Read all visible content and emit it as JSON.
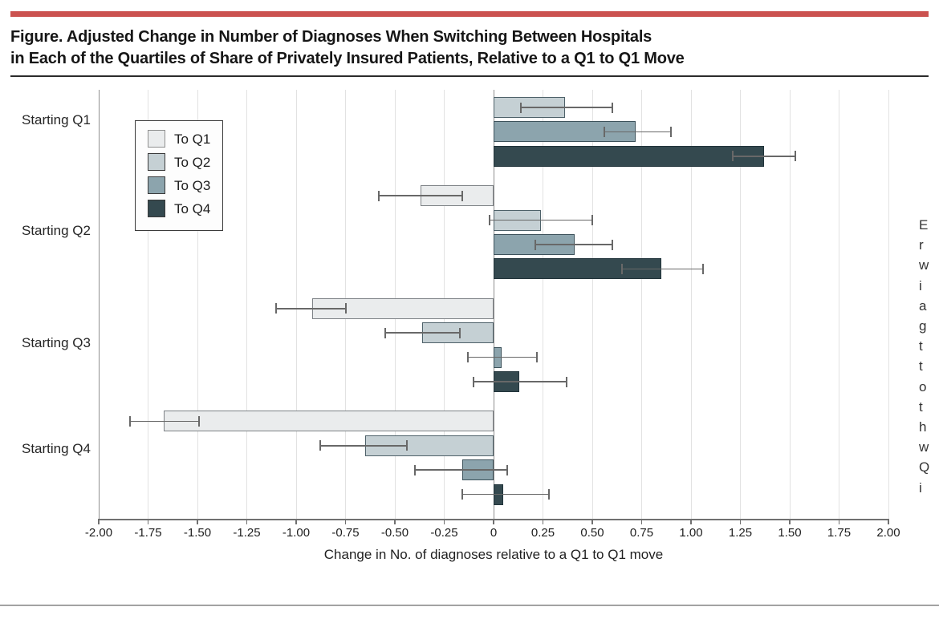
{
  "header": {
    "accent_color": "#cb524f",
    "title_line1": "Figure. Adjusted Change in Number of Diagnoses When Switching Between Hospitals",
    "title_line2": "in Each of the Quartiles of Share of Privately Insured Patients, Relative to a Q1 to Q1 Move"
  },
  "chart_data": {
    "type": "bar",
    "orientation": "horizontal",
    "title": "Adjusted Change in Number of Diagnoses When Switching Between Hospitals in Each of the Quartiles of Share of Privately Insured Patients, Relative to a Q1 to Q1 Move",
    "xlabel": "Change in No. of diagnoses relative to a Q1 to Q1 move",
    "xlim": [
      -2.0,
      2.0
    ],
    "xtick_step": 0.25,
    "xtick_labels": [
      "-2.00",
      "-1.75",
      "-1.50",
      "-1.25",
      "-1.00",
      "-0.75",
      "-0.50",
      "-0.25",
      "0",
      "0.25",
      "0.50",
      "0.75",
      "1.00",
      "1.25",
      "1.50",
      "1.75",
      "2.00"
    ],
    "grid": true,
    "legend_position": "upper left inside plot",
    "categories": [
      "Starting Q1",
      "Starting Q2",
      "Starting Q3",
      "Starting Q4"
    ],
    "series": [
      {
        "name": "To Q1",
        "fill": "#eaeced",
        "edge": "#7d8286",
        "values": [
          null,
          -0.37,
          -0.92,
          -1.67
        ],
        "ci_low": [
          null,
          -0.58,
          -1.1,
          -1.84
        ],
        "ci_high": [
          null,
          -0.16,
          -0.75,
          -1.49
        ]
      },
      {
        "name": "To Q2",
        "fill": "#c5d0d4",
        "edge": "#4e6169",
        "values": [
          0.36,
          0.24,
          -0.36,
          -0.65
        ],
        "ci_low": [
          0.14,
          -0.02,
          -0.55,
          -0.88
        ],
        "ci_high": [
          0.6,
          0.5,
          -0.17,
          -0.44
        ]
      },
      {
        "name": "To Q3",
        "fill": "#8ca4ad",
        "edge": "#3d525b",
        "values": [
          0.72,
          0.41,
          0.04,
          -0.16
        ],
        "ci_low": [
          0.56,
          0.21,
          -0.13,
          -0.4
        ],
        "ci_high": [
          0.9,
          0.6,
          0.22,
          0.07
        ]
      },
      {
        "name": "To Q4",
        "fill": "#34494f",
        "edge": "#22343b",
        "values": [
          1.37,
          0.85,
          0.13,
          0.05
        ],
        "ci_low": [
          1.21,
          0.65,
          -0.1,
          -0.16
        ],
        "ci_high": [
          1.53,
          1.06,
          0.37,
          0.28
        ]
      }
    ],
    "error_bars": "95% CI whiskers with end caps",
    "reference_note": "Starting Q1 to Q1 move is the reference (0; no bar drawn)"
  },
  "side_caption": {
    "truncated": true,
    "visible_line_fragments": [
      "E",
      "r",
      "w",
      "i",
      "a",
      "g",
      "t",
      "t",
      "o",
      "t",
      "h",
      "w",
      "Q",
      "i"
    ]
  }
}
